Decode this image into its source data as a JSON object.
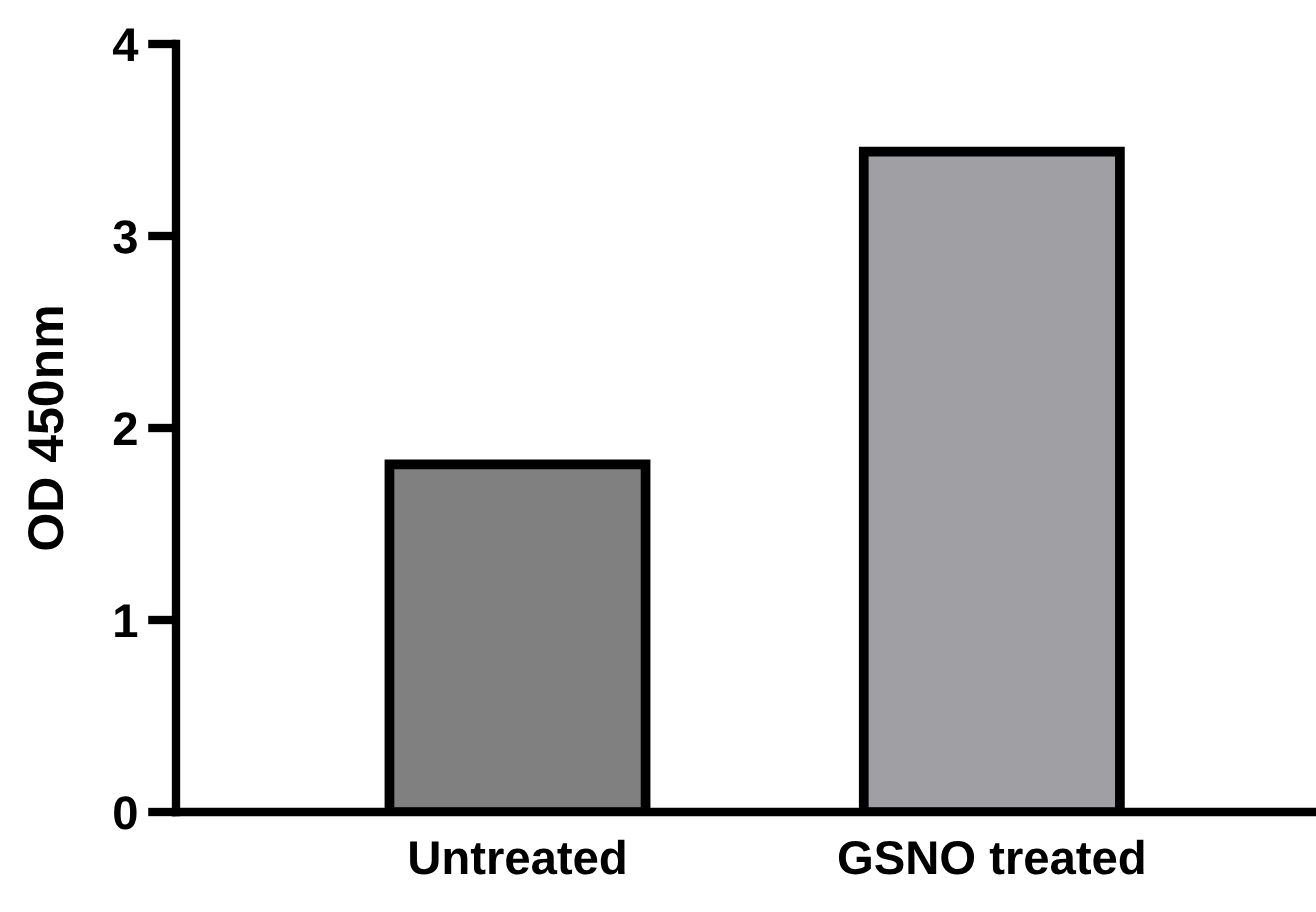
{
  "chart_data": {
    "type": "bar",
    "ylabel": "OD 450nm",
    "categories": [
      "Untreated",
      "GSNO treated"
    ],
    "values": [
      1.81,
      3.44
    ],
    "colors": [
      "#808080",
      "#a0a0a4"
    ],
    "ylim": [
      0,
      4
    ],
    "yticks": [
      0,
      1,
      2,
      3,
      4
    ],
    "grid": false
  }
}
